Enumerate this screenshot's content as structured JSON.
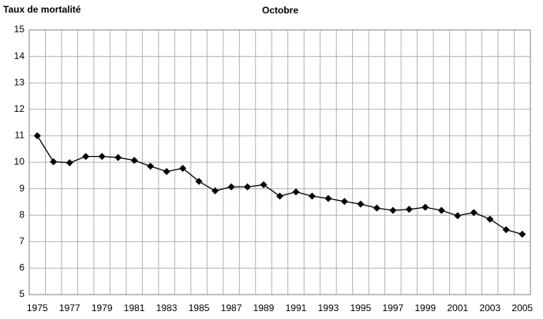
{
  "chart_data": {
    "type": "line",
    "title": "Octobre",
    "y_label": "Taux de mortalité",
    "categories": [
      "1975",
      null,
      "1977",
      null,
      "1979",
      null,
      "1981",
      null,
      "1983",
      null,
      "1985",
      null,
      "1987",
      null,
      "1989",
      null,
      "1991",
      null,
      "1993",
      null,
      "1995",
      null,
      "1997",
      null,
      "1999",
      null,
      "2001",
      null,
      "2003",
      null,
      "2005"
    ],
    "series": [
      {
        "name": "Taux de mortalité",
        "color": "#000000",
        "values": [
          11.0,
          10.02,
          9.98,
          10.22,
          10.22,
          10.18,
          10.07,
          9.85,
          9.65,
          9.77,
          9.28,
          8.92,
          9.07,
          9.07,
          9.15,
          8.72,
          8.88,
          8.72,
          8.63,
          8.52,
          8.42,
          8.27,
          8.18,
          8.22,
          8.3,
          8.18,
          7.98,
          8.1,
          7.85,
          7.45,
          7.28
        ]
      }
    ],
    "ylim": [
      5,
      15
    ],
    "yticks": [
      5,
      6,
      7,
      8,
      9,
      10,
      11,
      12,
      13,
      14,
      15
    ],
    "grid": true
  }
}
